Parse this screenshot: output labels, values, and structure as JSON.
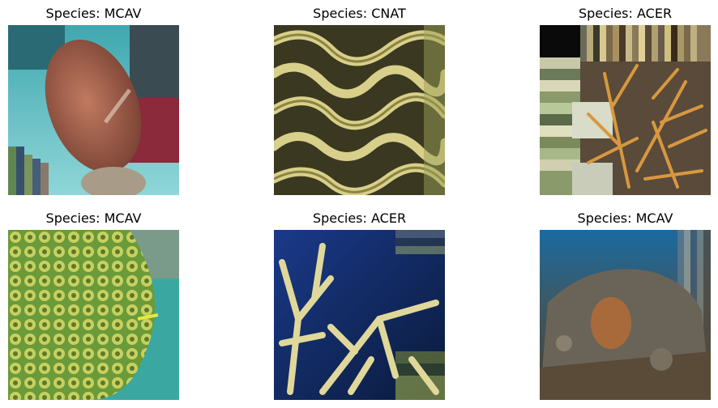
{
  "panels": [
    {
      "title": "Species: MCAV"
    },
    {
      "title": "Species: CNAT"
    },
    {
      "title": "Species: ACER"
    },
    {
      "title": "Species: MCAV"
    },
    {
      "title": "Species: ACER"
    },
    {
      "title": "Species: MCAV"
    }
  ]
}
